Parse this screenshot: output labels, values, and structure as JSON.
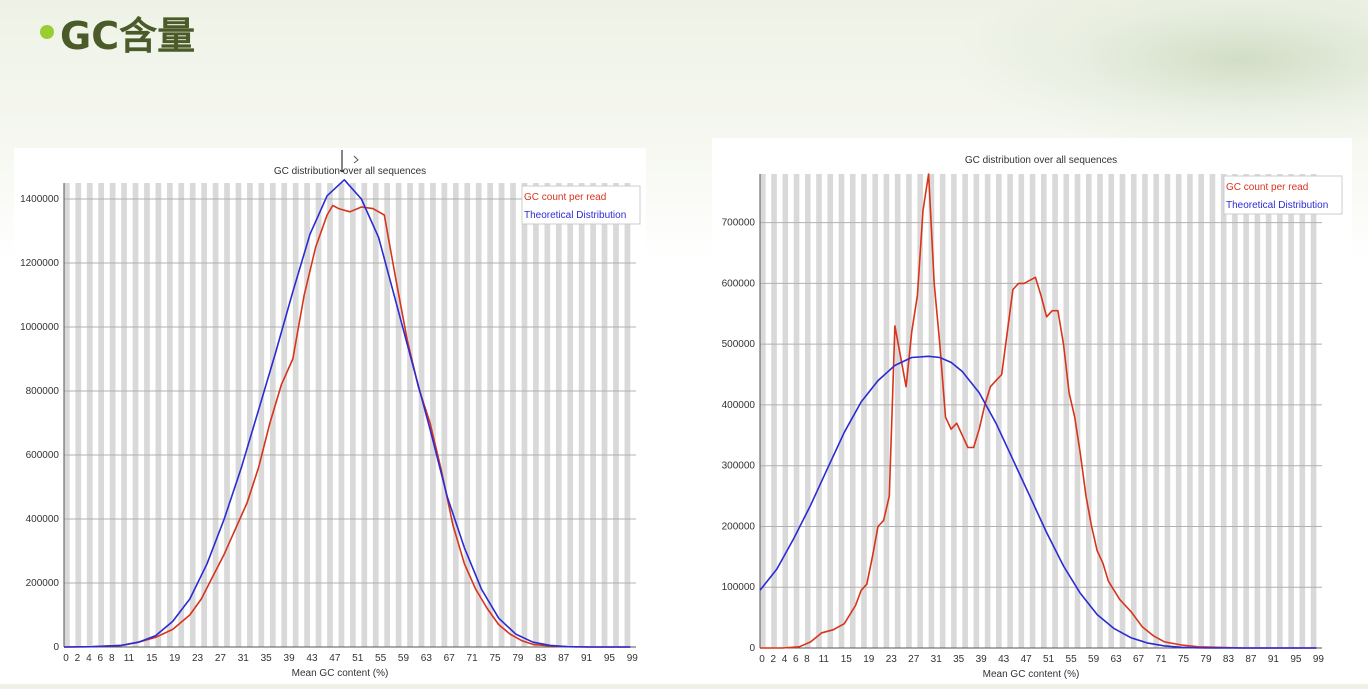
{
  "slide": {
    "title": "GC含量"
  },
  "colors": {
    "count": "#d8341c",
    "theory": "#2b2bd6",
    "stripe": "#d9d9d9",
    "grid": "#b0b0b0"
  },
  "chart_data": [
    {
      "type": "line",
      "title": "GC distribution over all sequences",
      "xlabel": "Mean GC content (%)",
      "ylabel": "",
      "xlim": [
        0,
        100
      ],
      "ylim": [
        0,
        1450000
      ],
      "x_ticks": [
        "0",
        "2",
        "4",
        "6",
        "8",
        "11",
        "15",
        "19",
        "23",
        "27",
        "31",
        "35",
        "39",
        "43",
        "47",
        "51",
        "55",
        "59",
        "63",
        "67",
        "71",
        "75",
        "79",
        "83",
        "87",
        "91",
        "95",
        "99"
      ],
      "y_ticks": [
        "0",
        "200000",
        "400000",
        "600000",
        "800000",
        "1000000",
        "1200000",
        "1400000"
      ],
      "y_tick_values": [
        0,
        200000,
        400000,
        600000,
        800000,
        1000000,
        1200000,
        1400000
      ],
      "legend_position": "top-right",
      "series": [
        {
          "name": "GC count per read",
          "x": [
            0,
            5,
            10,
            13,
            16,
            19,
            22,
            24,
            26,
            28,
            30,
            32,
            34,
            36,
            38,
            40,
            42,
            44,
            46,
            47,
            48,
            50,
            52,
            54,
            56,
            58,
            60,
            62,
            64,
            66,
            68,
            70,
            72,
            74,
            76,
            78,
            80,
            82,
            85,
            88,
            92,
            96,
            99
          ],
          "y": [
            0,
            1000,
            5000,
            15000,
            30000,
            55000,
            100000,
            150000,
            220000,
            290000,
            370000,
            450000,
            560000,
            700000,
            820000,
            900000,
            1100000,
            1250000,
            1350000,
            1380000,
            1370000,
            1360000,
            1375000,
            1370000,
            1350000,
            1150000,
            960000,
            810000,
            700000,
            550000,
            380000,
            260000,
            180000,
            120000,
            70000,
            40000,
            20000,
            8000,
            3000,
            1000,
            0,
            0,
            0
          ]
        },
        {
          "name": "Theoretical Distribution",
          "x": [
            0,
            5,
            10,
            13,
            16,
            19,
            22,
            25,
            28,
            31,
            34,
            37,
            40,
            43,
            46,
            49,
            52,
            55,
            58,
            61,
            64,
            67,
            70,
            73,
            76,
            79,
            82,
            85,
            88,
            92,
            96,
            99
          ],
          "y": [
            0,
            800,
            5000,
            15000,
            35000,
            80000,
            150000,
            260000,
            400000,
            560000,
            740000,
            920000,
            1110000,
            1290000,
            1410000,
            1460000,
            1400000,
            1280000,
            1080000,
            880000,
            680000,
            470000,
            310000,
            180000,
            90000,
            40000,
            15000,
            5000,
            1000,
            0,
            0,
            0
          ]
        }
      ]
    },
    {
      "type": "line",
      "title": "GC distribution over all sequences",
      "xlabel": "Mean GC content (%)",
      "ylabel": "",
      "xlim": [
        0,
        100
      ],
      "ylim": [
        0,
        780000
      ],
      "x_ticks": [
        "0",
        "2",
        "4",
        "6",
        "8",
        "11",
        "15",
        "19",
        "23",
        "27",
        "31",
        "35",
        "39",
        "43",
        "47",
        "51",
        "55",
        "59",
        "63",
        "67",
        "71",
        "75",
        "79",
        "83",
        "87",
        "91",
        "95",
        "99"
      ],
      "y_ticks": [
        "0",
        "100000",
        "200000",
        "300000",
        "400000",
        "500000",
        "600000",
        "700000"
      ],
      "y_tick_values": [
        0,
        100000,
        200000,
        300000,
        400000,
        500000,
        600000,
        700000
      ],
      "legend_position": "top-right",
      "series": [
        {
          "name": "GC count per read",
          "x": [
            0,
            4,
            7,
            9,
            11,
            13,
            15,
            17,
            18,
            19,
            20,
            21,
            22,
            23,
            24,
            25,
            26,
            27,
            28,
            29,
            30,
            31,
            32,
            33,
            34,
            35,
            36,
            37,
            38,
            39,
            40,
            41,
            42,
            43,
            44,
            45,
            46,
            47,
            48,
            49,
            50,
            51,
            52,
            53,
            54,
            55,
            56,
            57,
            58,
            59,
            60,
            61,
            62,
            64,
            66,
            68,
            70,
            72,
            75,
            78,
            82,
            86,
            90,
            95,
            99
          ],
          "y": [
            0,
            0,
            2000,
            10000,
            25000,
            30000,
            40000,
            70000,
            95000,
            105000,
            150000,
            200000,
            210000,
            250000,
            530000,
            480000,
            430000,
            520000,
            580000,
            720000,
            780000,
            600000,
            500000,
            380000,
            360000,
            370000,
            350000,
            330000,
            330000,
            360000,
            400000,
            430000,
            440000,
            450000,
            520000,
            590000,
            600000,
            600000,
            605000,
            610000,
            580000,
            545000,
            555000,
            555000,
            500000,
            420000,
            380000,
            320000,
            250000,
            200000,
            160000,
            140000,
            110000,
            80000,
            60000,
            35000,
            20000,
            10000,
            5000,
            2000,
            1000,
            0,
            0,
            0,
            0
          ]
        },
        {
          "name": "Theoretical Distribution",
          "x": [
            0,
            3,
            6,
            9,
            12,
            15,
            18,
            21,
            24,
            27,
            30,
            32,
            34,
            36,
            39,
            42,
            45,
            48,
            51,
            54,
            57,
            60,
            63,
            66,
            69,
            72,
            75,
            78,
            81,
            85,
            89,
            93,
            99
          ],
          "y": [
            95000,
            130000,
            180000,
            235000,
            295000,
            355000,
            405000,
            440000,
            465000,
            478000,
            480000,
            478000,
            470000,
            455000,
            420000,
            370000,
            310000,
            250000,
            190000,
            135000,
            90000,
            55000,
            32000,
            17000,
            8000,
            3500,
            1200,
            400,
            100,
            0,
            0,
            0,
            0
          ]
        }
      ]
    }
  ]
}
